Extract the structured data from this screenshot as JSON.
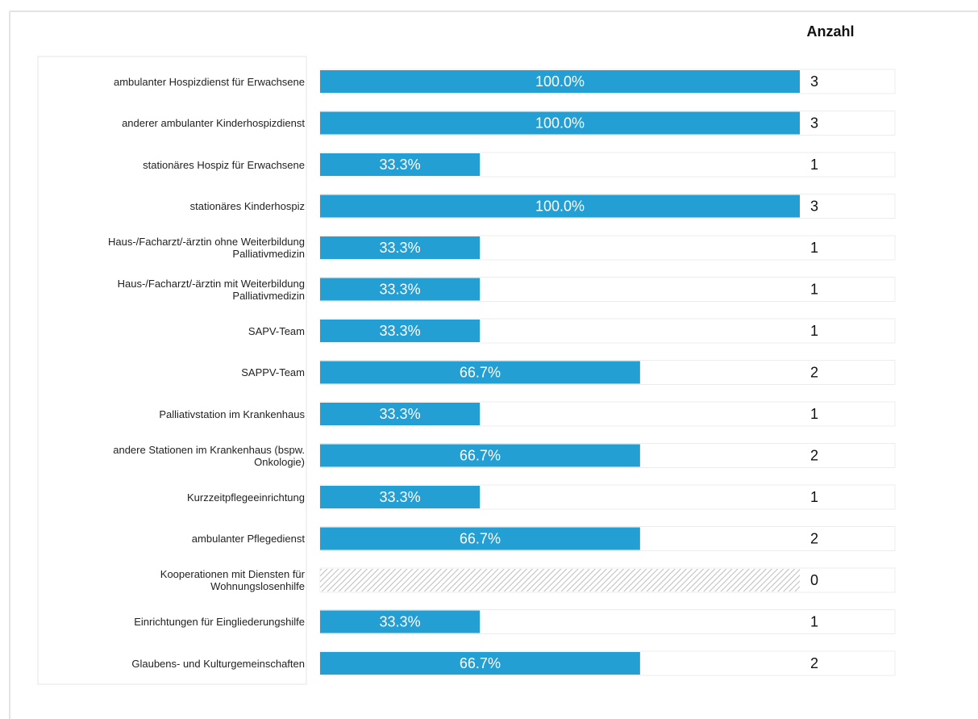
{
  "chart_data": {
    "type": "bar",
    "orientation": "horizontal",
    "count_header": "Anzahl",
    "categories": [
      "ambulanter Hospizdienst für Erwachsene",
      "anderer ambulanter Kinderhospizdienst",
      "stationäres Hospiz für Erwachsene",
      "stationäres Kinderhospiz",
      "Haus-/Facharzt/-ärztin ohne Weiterbildung Palliativmedizin",
      "Haus-/Facharzt/-ärztin mit Weiterbildung Palliativmedizin",
      "SAPV-Team",
      "SAPPV-Team",
      "Palliativstation im Krankenhaus",
      "andere Stationen im Krankenhaus (bspw. Onkologie)",
      "Kurzzeitpflegeeinrichtung",
      "ambulanter Pflegedienst",
      "Kooperationen mit Diensten für Wohnungslosenhilfe",
      "Einrichtungen für Eingliederungshilfe",
      "Glaubens- und Kulturgemeinschaften"
    ],
    "values": [
      100,
      100,
      33.3,
      100,
      33.3,
      33.3,
      33.3,
      66.7,
      33.3,
      66.7,
      33.3,
      66.7,
      0,
      33.3,
      66.7
    ],
    "value_labels": [
      "100.0%",
      "100.0%",
      "33.3%",
      "100.0%",
      "33.3%",
      "33.3%",
      "33.3%",
      "66.7%",
      "33.3%",
      "66.7%",
      "33.3%",
      "66.7%",
      null,
      "33.3%",
      "66.7%"
    ],
    "counts": [
      3,
      3,
      1,
      3,
      1,
      1,
      1,
      2,
      1,
      2,
      1,
      2,
      0,
      1,
      2
    ],
    "color": "#249fd3",
    "xlim": [
      0,
      100
    ]
  }
}
